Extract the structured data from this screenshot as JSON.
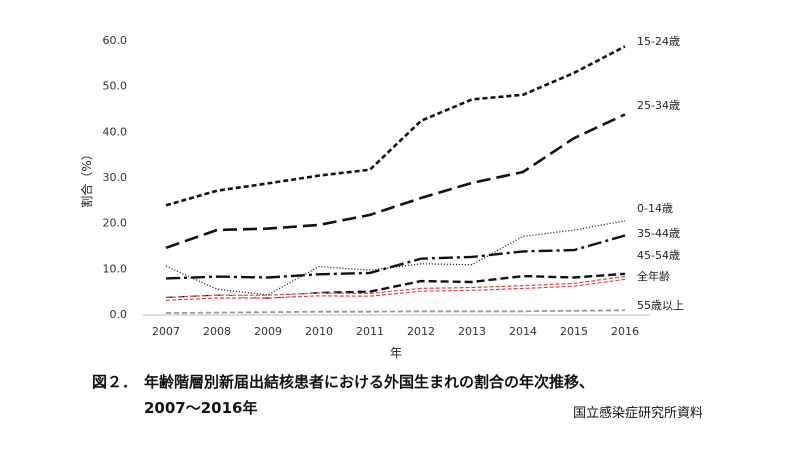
{
  "chart_data": {
    "type": "line",
    "ylabel": "割合（%）",
    "xlabel": "年",
    "ylim": [
      0,
      60
    ],
    "yticks": [
      "0.0",
      "10.0",
      "20.0",
      "30.0",
      "40.0",
      "50.0",
      "60.0"
    ],
    "grid": false,
    "categories": [
      "2007",
      "2008",
      "2009",
      "2010",
      "2011",
      "2012",
      "2013",
      "2014",
      "2015",
      "2016"
    ],
    "series": [
      {
        "name": "15-24歳",
        "style": "dotted-dash",
        "color": "#111111",
        "values": [
          23.8,
          27.0,
          28.6,
          30.3,
          31.6,
          42.3,
          47.0,
          48.0,
          52.8,
          58.6
        ]
      },
      {
        "name": "25-34歳",
        "style": "long-dash",
        "color": "#111111",
        "values": [
          14.5,
          18.4,
          18.7,
          19.5,
          21.7,
          25.4,
          28.7,
          31.1,
          38.5,
          43.7
        ]
      },
      {
        "name": "0-14歳",
        "style": "fine-dot",
        "color": "#333333",
        "values": [
          10.5,
          5.4,
          4.2,
          10.4,
          9.6,
          11.0,
          10.8,
          17.0,
          18.4,
          20.4
        ]
      },
      {
        "name": "35-44歳",
        "style": "dash-dot",
        "color": "#111111",
        "values": [
          7.8,
          8.2,
          8.0,
          8.7,
          9.0,
          12.1,
          12.5,
          13.7,
          14.0,
          17.2
        ]
      },
      {
        "name": "45-54歳",
        "style": "dash",
        "color": "#111111",
        "values": [
          3.5,
          4.0,
          3.6,
          4.6,
          4.9,
          7.2,
          7.0,
          8.3,
          8.0,
          8.8
        ]
      },
      {
        "name": "全年齢",
        "style": "hollow-red",
        "color": "#e8403c",
        "values": [
          3.3,
          3.8,
          3.8,
          4.3,
          4.2,
          5.3,
          5.5,
          5.9,
          6.4,
          7.9
        ]
      },
      {
        "name": "55歳以上",
        "style": "gray-dash",
        "color": "#999999",
        "values": [
          0.2,
          0.3,
          0.4,
          0.5,
          0.5,
          0.6,
          0.6,
          0.6,
          0.7,
          0.8
        ]
      }
    ]
  },
  "caption": {
    "fig_label": "図２．",
    "title": "年齢階層別新届出結核患者における外国生まれの割合の年次推移、",
    "years": "2007〜2016年",
    "source": "国立感染症研究所資料"
  }
}
